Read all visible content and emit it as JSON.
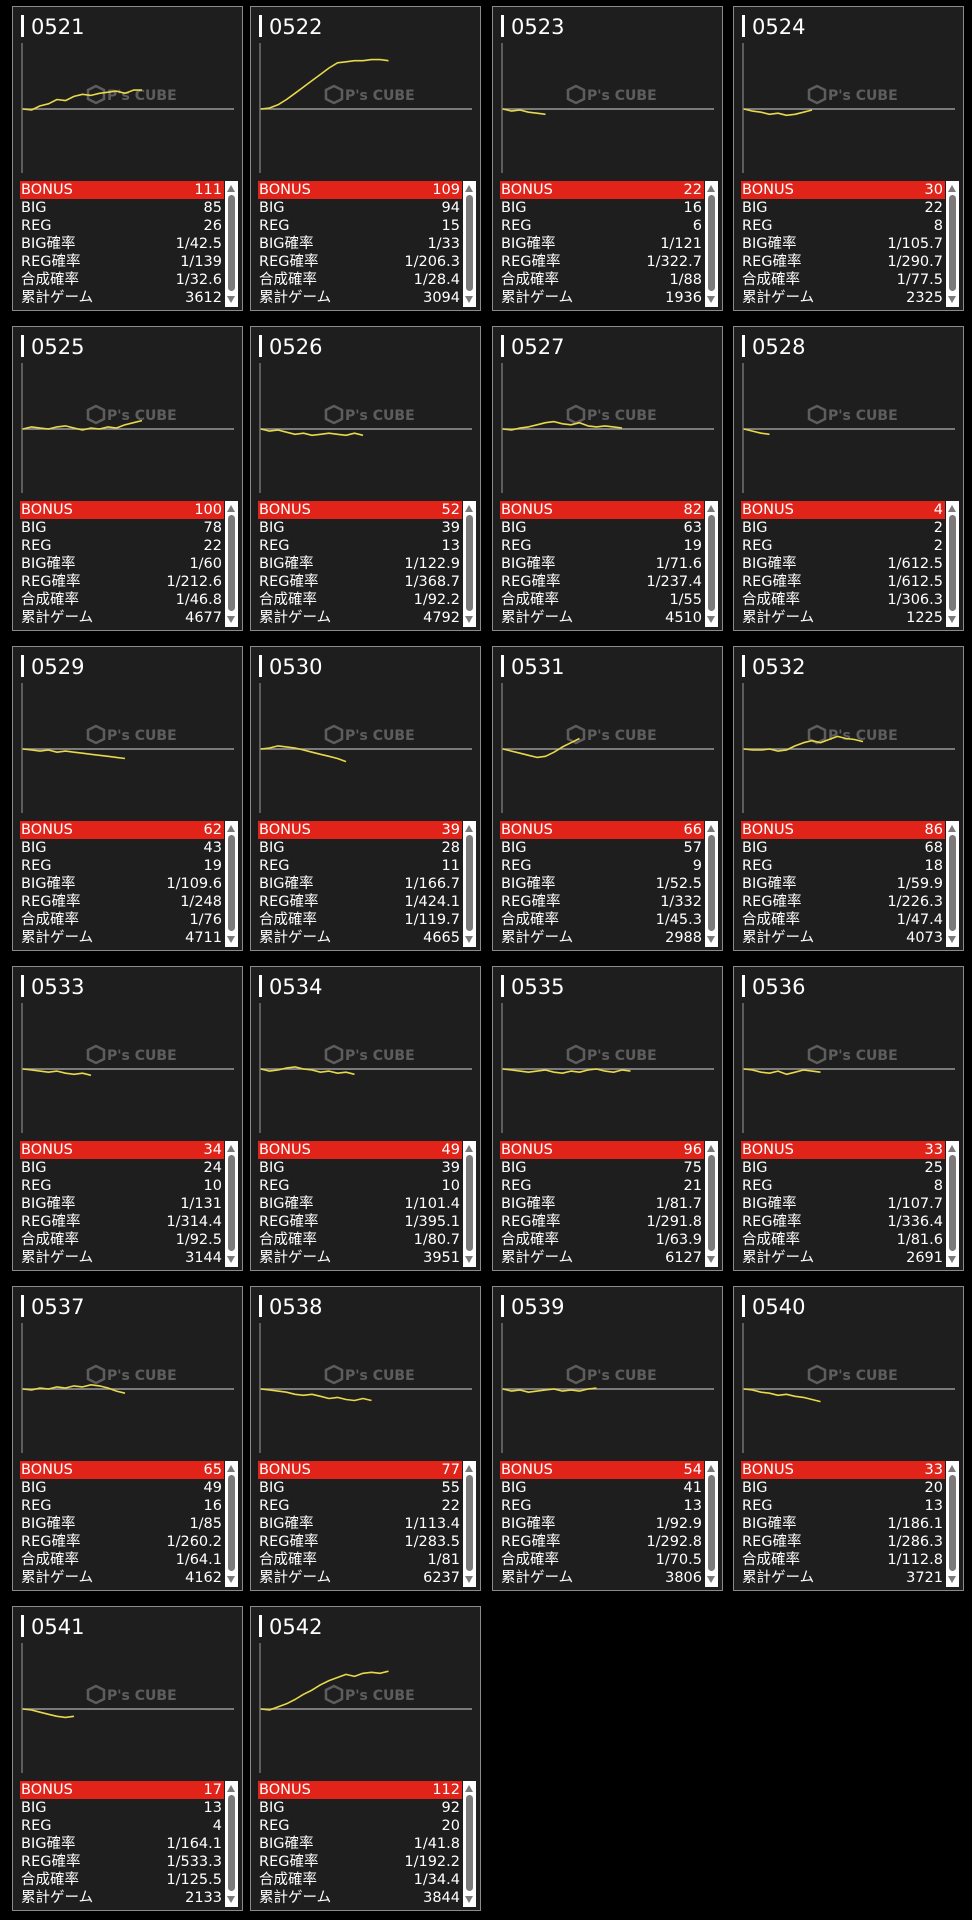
{
  "watermark": "P's CUBE",
  "colors": {
    "background": "#000000",
    "card": "#1e1e1e",
    "bonus_bar": "#e2231a",
    "graph_line": "#e8d84a",
    "axis": "#9a9a9a"
  },
  "row_labels": [
    "BONUS",
    "BIG",
    "REG",
    "BIG確率",
    "REG確率",
    "合成確率",
    "累計ゲーム"
  ],
  "machines": [
    {
      "id": "0521",
      "bonus": "111",
      "big": "85",
      "reg": "26",
      "big_rate": "1/42.5",
      "reg_rate": "1/139",
      "total_rate": "1/32.6",
      "games": "3612"
    },
    {
      "id": "0522",
      "bonus": "109",
      "big": "94",
      "reg": "15",
      "big_rate": "1/33",
      "reg_rate": "1/206.3",
      "total_rate": "1/28.4",
      "games": "3094"
    },
    {
      "id": "0523",
      "bonus": "22",
      "big": "16",
      "reg": "6",
      "big_rate": "1/121",
      "reg_rate": "1/322.7",
      "total_rate": "1/88",
      "games": "1936"
    },
    {
      "id": "0524",
      "bonus": "30",
      "big": "22",
      "reg": "8",
      "big_rate": "1/105.7",
      "reg_rate": "1/290.7",
      "total_rate": "1/77.5",
      "games": "2325"
    },
    {
      "id": "0525",
      "bonus": "100",
      "big": "78",
      "reg": "22",
      "big_rate": "1/60",
      "reg_rate": "1/212.6",
      "total_rate": "1/46.8",
      "games": "4677"
    },
    {
      "id": "0526",
      "bonus": "52",
      "big": "39",
      "reg": "13",
      "big_rate": "1/122.9",
      "reg_rate": "1/368.7",
      "total_rate": "1/92.2",
      "games": "4792"
    },
    {
      "id": "0527",
      "bonus": "82",
      "big": "63",
      "reg": "19",
      "big_rate": "1/71.6",
      "reg_rate": "1/237.4",
      "total_rate": "1/55",
      "games": "4510"
    },
    {
      "id": "0528",
      "bonus": "4",
      "big": "2",
      "reg": "2",
      "big_rate": "1/612.5",
      "reg_rate": "1/612.5",
      "total_rate": "1/306.3",
      "games": "1225"
    },
    {
      "id": "0529",
      "bonus": "62",
      "big": "43",
      "reg": "19",
      "big_rate": "1/109.6",
      "reg_rate": "1/248",
      "total_rate": "1/76",
      "games": "4711"
    },
    {
      "id": "0530",
      "bonus": "39",
      "big": "28",
      "reg": "11",
      "big_rate": "1/166.7",
      "reg_rate": "1/424.1",
      "total_rate": "1/119.7",
      "games": "4665"
    },
    {
      "id": "0531",
      "bonus": "66",
      "big": "57",
      "reg": "9",
      "big_rate": "1/52.5",
      "reg_rate": "1/332",
      "total_rate": "1/45.3",
      "games": "2988"
    },
    {
      "id": "0532",
      "bonus": "86",
      "big": "68",
      "reg": "18",
      "big_rate": "1/59.9",
      "reg_rate": "1/226.3",
      "total_rate": "1/47.4",
      "games": "4073"
    },
    {
      "id": "0533",
      "bonus": "34",
      "big": "24",
      "reg": "10",
      "big_rate": "1/131",
      "reg_rate": "1/314.4",
      "total_rate": "1/92.5",
      "games": "3144"
    },
    {
      "id": "0534",
      "bonus": "49",
      "big": "39",
      "reg": "10",
      "big_rate": "1/101.4",
      "reg_rate": "1/395.1",
      "total_rate": "1/80.7",
      "games": "3951"
    },
    {
      "id": "0535",
      "bonus": "96",
      "big": "75",
      "reg": "21",
      "big_rate": "1/81.7",
      "reg_rate": "1/291.8",
      "total_rate": "1/63.9",
      "games": "6127"
    },
    {
      "id": "0536",
      "bonus": "33",
      "big": "25",
      "reg": "8",
      "big_rate": "1/107.7",
      "reg_rate": "1/336.4",
      "total_rate": "1/81.6",
      "games": "2691"
    },
    {
      "id": "0537",
      "bonus": "65",
      "big": "49",
      "reg": "16",
      "big_rate": "1/85",
      "reg_rate": "1/260.2",
      "total_rate": "1/64.1",
      "games": "4162"
    },
    {
      "id": "0538",
      "bonus": "77",
      "big": "55",
      "reg": "22",
      "big_rate": "1/113.4",
      "reg_rate": "1/283.5",
      "total_rate": "1/81",
      "games": "6237"
    },
    {
      "id": "0539",
      "bonus": "54",
      "big": "41",
      "reg": "13",
      "big_rate": "1/92.9",
      "reg_rate": "1/292.8",
      "total_rate": "1/70.5",
      "games": "3806"
    },
    {
      "id": "0540",
      "bonus": "33",
      "big": "20",
      "reg": "13",
      "big_rate": "1/186.1",
      "reg_rate": "1/286.3",
      "total_rate": "1/112.8",
      "games": "3721"
    },
    {
      "id": "0541",
      "bonus": "17",
      "big": "13",
      "reg": "4",
      "big_rate": "1/164.1",
      "reg_rate": "1/533.3",
      "total_rate": "1/125.5",
      "games": "2133"
    },
    {
      "id": "0542",
      "bonus": "112",
      "big": "92",
      "reg": "20",
      "big_rate": "1/41.8",
      "reg_rate": "1/192.2",
      "total_rate": "1/34.4",
      "games": "3844"
    }
  ],
  "graphs": [
    {
      "id": "0521",
      "trend": [
        0,
        -1,
        3,
        5,
        9,
        8,
        12,
        14,
        13,
        15,
        16,
        17,
        15,
        18,
        18
      ]
    },
    {
      "id": "0522",
      "trend": [
        0,
        1,
        4,
        9,
        15,
        21,
        27,
        33,
        39,
        44,
        45,
        46,
        46,
        47,
        47,
        46
      ]
    },
    {
      "id": "0523",
      "trend": [
        0,
        -2,
        -1,
        -3,
        -4,
        -5
      ]
    },
    {
      "id": "0524",
      "trend": [
        0,
        -2,
        -3,
        -5,
        -4,
        -6,
        -5,
        -3,
        -1
      ]
    },
    {
      "id": "0525",
      "trend": [
        0,
        2,
        1,
        0,
        2,
        3,
        1,
        -1,
        1,
        0,
        2,
        1,
        4,
        6,
        8
      ]
    },
    {
      "id": "0526",
      "trend": [
        0,
        -2,
        -1,
        -3,
        -5,
        -4,
        -6,
        -5,
        -4,
        -5,
        -6,
        -4,
        -6
      ]
    },
    {
      "id": "0527",
      "trend": [
        0,
        -1,
        1,
        2,
        4,
        6,
        7,
        5,
        4,
        6,
        3,
        2,
        3,
        2,
        1
      ]
    },
    {
      "id": "0528",
      "trend": [
        0,
        -2,
        -4,
        -5
      ]
    },
    {
      "id": "0529",
      "trend": [
        0,
        -1,
        -2,
        -1,
        -3,
        -2,
        -3,
        -4,
        -5,
        -6,
        -7,
        -8,
        -9
      ]
    },
    {
      "id": "0530",
      "trend": [
        0,
        1,
        3,
        2,
        1,
        -1,
        -3,
        -5,
        -7,
        -9,
        -12
      ]
    },
    {
      "id": "0531",
      "trend": [
        0,
        -2,
        -4,
        -6,
        -8,
        -7,
        -3,
        2,
        6,
        10
      ]
    },
    {
      "id": "0532",
      "trend": [
        0,
        -1,
        -1,
        0,
        -2,
        -1,
        3,
        6,
        8,
        6,
        9,
        12,
        10,
        9,
        7
      ]
    },
    {
      "id": "0533",
      "trend": [
        0,
        -1,
        -2,
        -3,
        -2,
        -4,
        -5,
        -4,
        -6
      ]
    },
    {
      "id": "0534",
      "trend": [
        0,
        -2,
        -1,
        1,
        2,
        0,
        -1,
        -3,
        -2,
        -4,
        -3,
        -5
      ]
    },
    {
      "id": "0535",
      "trend": [
        0,
        -1,
        -2,
        -3,
        -2,
        -1,
        -3,
        -4,
        -2,
        -3,
        -1,
        0,
        -2,
        -3,
        -1,
        -2
      ]
    },
    {
      "id": "0536",
      "trend": [
        0,
        -1,
        -3,
        -4,
        -2,
        -5,
        -3,
        -1,
        -2,
        -3
      ]
    },
    {
      "id": "0537",
      "trend": [
        0,
        -1,
        1,
        0,
        2,
        1,
        3,
        2,
        4,
        3,
        1,
        -2,
        -4
      ]
    },
    {
      "id": "0538",
      "trend": [
        0,
        -1,
        -2,
        -3,
        -5,
        -6,
        -5,
        -7,
        -9,
        -8,
        -10,
        -11,
        -9,
        -11
      ]
    },
    {
      "id": "0539",
      "trend": [
        0,
        -2,
        -1,
        -3,
        -2,
        -1,
        0,
        -2,
        -1,
        -2,
        0,
        1
      ]
    },
    {
      "id": "0540",
      "trend": [
        0,
        -1,
        -3,
        -4,
        -6,
        -5,
        -7,
        -8,
        -10,
        -12
      ]
    },
    {
      "id": "0541",
      "trend": [
        0,
        -1,
        -3,
        -5,
        -7,
        -8,
        -7
      ]
    },
    {
      "id": "0542",
      "trend": [
        0,
        -1,
        2,
        5,
        9,
        14,
        18,
        23,
        27,
        30,
        33,
        31,
        34,
        35,
        34,
        36
      ]
    }
  ]
}
